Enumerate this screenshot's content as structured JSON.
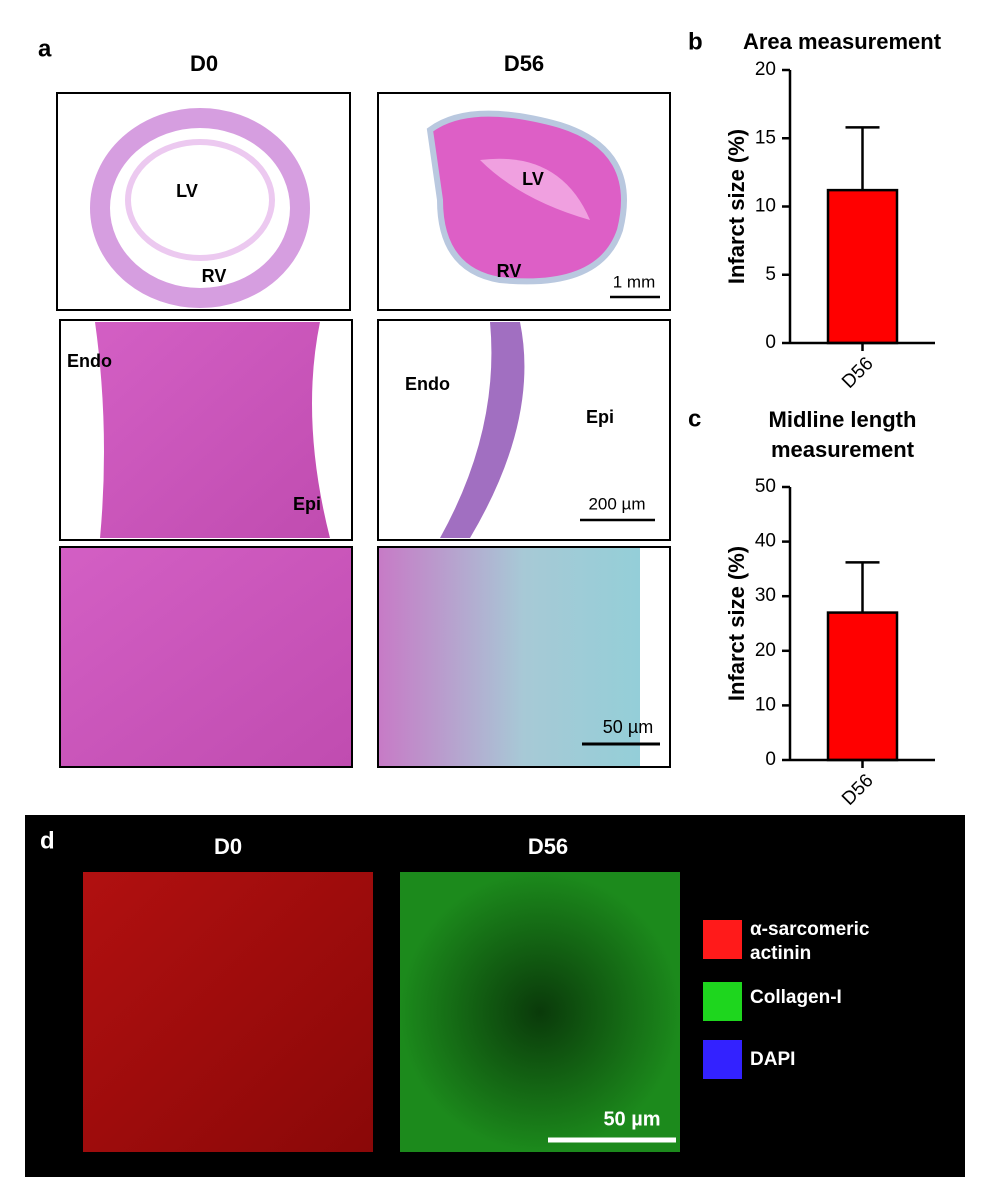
{
  "figure": {
    "panel_a": {
      "label": "a",
      "columns": [
        "D0",
        "D56"
      ],
      "d0_top": [
        "LV",
        "RV"
      ],
      "d56_top": [
        "LV",
        "RV"
      ],
      "top_scale": "1 mm",
      "d0_mid": [
        "Endo",
        "Epi"
      ],
      "d56_mid": [
        "Endo",
        "Epi"
      ],
      "mid_scale": "200 µm",
      "bottom_scale": "50 µm"
    },
    "panel_d": {
      "label": "d",
      "columns": [
        "D0",
        "D56"
      ],
      "scale_bar": "50 µm",
      "legend": [
        {
          "name": "α-sarcomeric actinin",
          "color": "#ff1a1a"
        },
        {
          "name": "Collagen-I",
          "color": "#1ed61e"
        },
        {
          "name": "DAPI",
          "color": "#3322ff"
        }
      ]
    }
  },
  "chart_data": [
    {
      "type": "bar",
      "panel_label": "b",
      "title": "Area measurement",
      "ylabel": "Infarct size (%)",
      "categories": [
        "D56"
      ],
      "values": [
        11.2
      ],
      "errors": [
        4.6
      ],
      "color": "#ff0000",
      "ylim": [
        0,
        20
      ],
      "yticks": [
        0,
        5,
        10,
        15,
        20
      ]
    },
    {
      "type": "bar",
      "panel_label": "c",
      "title": "Midline length measurement",
      "ylabel": "Infarct size (%)",
      "categories": [
        "D56"
      ],
      "values": [
        27
      ],
      "errors": [
        9.2
      ],
      "color": "#ff0000",
      "ylim": [
        0,
        50
      ],
      "yticks": [
        0,
        10,
        20,
        30,
        40,
        50
      ]
    }
  ]
}
